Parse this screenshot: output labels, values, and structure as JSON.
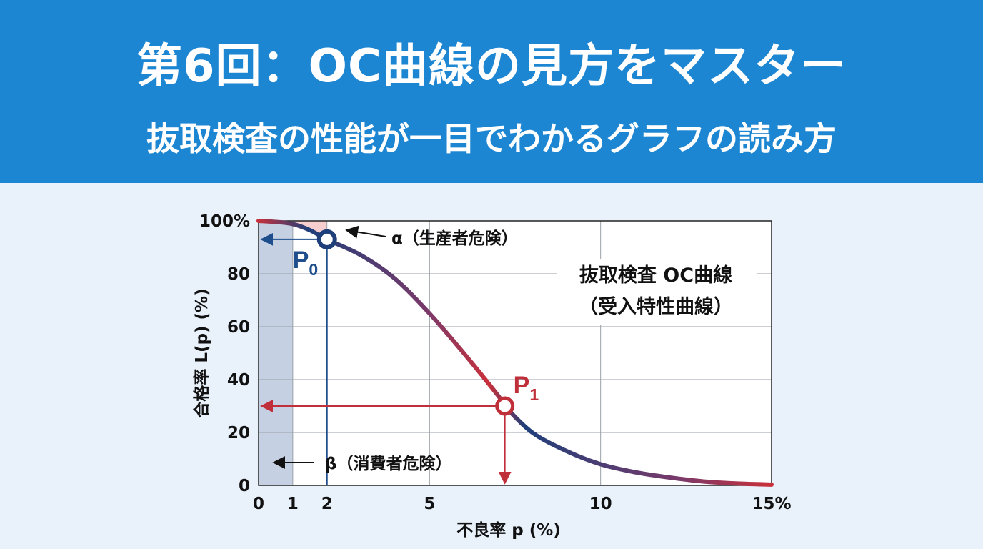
{
  "header": {
    "title": "第6回：OC曲線の見方をマスター",
    "subtitle": "抜取検査の性能が一目でわかるグラフの読み方"
  },
  "colors": {
    "banner": "#1d86d2",
    "page_background": "#e9f2fb",
    "curve_blue": "#1f3f7a",
    "curve_red": "#c9303b",
    "p0_color": "#1f4e8c",
    "p1_color": "#c0303b"
  },
  "chart_data": {
    "type": "line",
    "x": [
      0,
      0.5,
      1,
      1.5,
      2,
      3,
      4,
      5,
      6,
      7,
      7.2,
      8,
      9,
      10,
      11,
      12,
      13,
      14,
      15
    ],
    "series": [
      {
        "values": [
          100,
          99.6,
          98.8,
          96.5,
          93,
          87,
          78,
          65,
          50,
          34,
          30,
          20,
          13,
          8,
          5,
          3,
          1.5,
          0.7,
          0.3
        ]
      }
    ],
    "xlabel": "不良率 p (%)",
    "ylabel": "合格率 L(p) (%)",
    "xlim": [
      0,
      15
    ],
    "ylim": [
      0,
      100
    ],
    "x_ticks": [
      0,
      1,
      2,
      5,
      10,
      15
    ],
    "x_tick_labels": [
      "0",
      "1",
      "2",
      "5",
      "10",
      "15%"
    ],
    "y_ticks": [
      0,
      20,
      40,
      60,
      80,
      100
    ],
    "y_tick_labels": [
      "0",
      "20",
      "40",
      "60",
      "80",
      "100%"
    ],
    "grid": true,
    "points": [
      {
        "label": "P",
        "subscript": "0",
        "x": 2,
        "y": 93
      },
      {
        "label": "P",
        "subscript": "1",
        "x": 7.2,
        "y": 30
      }
    ],
    "annotations": {
      "alpha": "α（生産者危険）",
      "beta": "β（消費者危険）",
      "curve_title_line1": "抜取検査 OC曲線",
      "curve_title_line2": "（受入特性曲線）"
    },
    "shaded_region_x": [
      0,
      1
    ]
  }
}
